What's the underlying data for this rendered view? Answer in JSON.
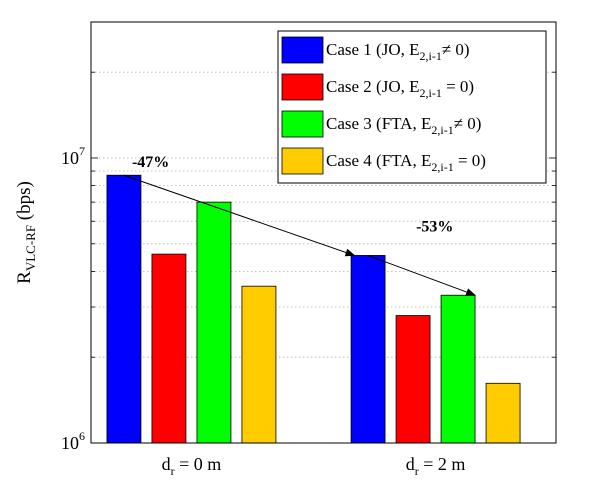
{
  "chart_data": {
    "type": "bar",
    "y_scale": "log",
    "ylim": [
      1000000,
      30000000
    ],
    "ylabel": {
      "main": "R",
      "sub": "VLC-RF",
      "unit": " (bps)"
    },
    "y_ticks": [
      {
        "value": 1000000,
        "base": "10",
        "exp": "6"
      },
      {
        "value": 10000000,
        "base": "10",
        "exp": "7"
      }
    ],
    "categories": [
      {
        "main": "d",
        "sub": "r",
        "rest": " = 0 m"
      },
      {
        "main": "d",
        "sub": "r",
        "rest": " = 2 m"
      }
    ],
    "series": [
      {
        "name": {
          "pre": "Case 1 (JO, E",
          "sub": "2,i-1",
          "post": "≠ 0)"
        },
        "color": "#0000ff",
        "values": [
          8700000,
          4550000
        ]
      },
      {
        "name": {
          "pre": "Case 2 (JO, E",
          "sub": "2,i-1",
          "post": " = 0)"
        },
        "color": "#ff0000",
        "values": [
          4600000,
          2800000
        ]
      },
      {
        "name": {
          "pre": "Case 3 (FTA, E",
          "sub": "2,i-1",
          "post": "≠ 0)"
        },
        "color": "#00ff00",
        "values": [
          7000000,
          3300000
        ]
      },
      {
        "name": {
          "pre": "Case 4 (FTA, E",
          "sub": "2,i-1",
          "post": " = 0)"
        },
        "color": "#ffcc00",
        "values": [
          3550000,
          1620000
        ]
      }
    ],
    "grid": true,
    "legend_position": "top-right",
    "annotations": [
      {
        "text": "-47%",
        "from": {
          "category": 0,
          "series": 0
        },
        "to": {
          "category": 1,
          "series": 0
        }
      },
      {
        "text": "-53%",
        "from": {
          "category": 1,
          "series": 0
        },
        "to": {
          "category": 1,
          "series": 2
        }
      }
    ]
  }
}
